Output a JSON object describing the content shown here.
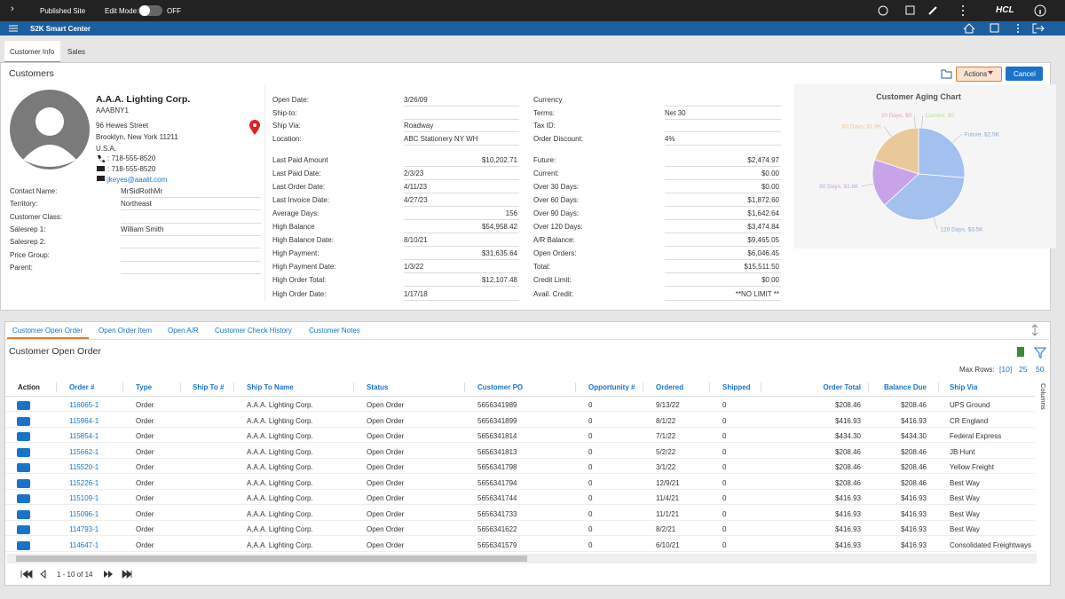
{
  "top_bar": {
    "site": "Published Site",
    "edit_mode": "Edit Mode:",
    "edit_state": "OFF",
    "brand": "HCL"
  },
  "app_bar": {
    "title": "S2K Smart Center"
  },
  "tabs": [
    "Customer Info",
    "Sales"
  ],
  "customers": {
    "title": "Customers",
    "actions": "Actions",
    "cancel": "Cancel"
  },
  "customer": {
    "name": "A.A.A. Lighting Corp.",
    "code": "AAABNY1",
    "address": [
      "96 Hewes Street",
      "Brooklyn, New York 11211",
      "U.S.A."
    ],
    "phone": ": 718-555-8520",
    "fax": ": 718-555-8520",
    "email": "jkeyes@aaalit.com"
  },
  "contact_fields": [
    {
      "label": "Contact Name:",
      "value": "MrSidRothMr"
    },
    {
      "label": "Territory:",
      "value": "Northeast"
    },
    {
      "label": "Customer Class:"
    },
    {
      "label": "Salesrep 1:",
      "value": "William Smith"
    },
    {
      "label": "Salesrep 2:"
    },
    {
      "label": "Price Group:"
    },
    {
      "label": "Parent:"
    }
  ],
  "details_col1": [
    {
      "label": "Open Date:",
      "value": "3/26/09"
    },
    {
      "label": "Ship-to:"
    },
    {
      "label": "Ship Via:",
      "value": "Roadway"
    },
    {
      "label": "Location:",
      "value": "ABC Stationery NY WH"
    },
    {
      "label": "Last Paid Amount",
      "value": "$10,202.71"
    },
    {
      "label": "Last Paid Date:",
      "value": "2/3/23"
    },
    {
      "label": "Last Order Date:",
      "value": "4/11/23"
    },
    {
      "label": "Last Invoice Date:",
      "value": "4/27/23"
    },
    {
      "label": "Average Days:",
      "value": "156"
    },
    {
      "label": "High Balance",
      "value": "$54,958.42"
    },
    {
      "label": "High Balance Date:",
      "value": "8/10/21"
    },
    {
      "label": "High Payment:",
      "value": "$31,635.64"
    },
    {
      "label": "High Payment Date:",
      "value": "1/3/22"
    },
    {
      "label": "High Order Total:",
      "value": "$12,107.48"
    },
    {
      "label": "High Order Date:",
      "value": "1/17/18"
    }
  ],
  "details_col2": [
    {
      "label": "Currency"
    },
    {
      "label": "Terms:",
      "value": "Net 30"
    },
    {
      "label": "Tax ID:"
    },
    {
      "label": "Order Discount:",
      "value": "4%"
    },
    {
      "label": "Future:",
      "value": "$2,474.97"
    },
    {
      "label": "Current:",
      "value": "$0.00"
    },
    {
      "label": "Over 30 Days:",
      "value": "$0.00"
    },
    {
      "label": "Over 60 Days:",
      "value": "$1,872.60"
    },
    {
      "label": "Over 90 Days:",
      "value": "$1,642.64"
    },
    {
      "label": "Over 120 Days:",
      "value": "$3,474.84"
    },
    {
      "label": "A/R Balance:",
      "value": "$9,465.05"
    },
    {
      "label": "Open Orders:",
      "value": "$6,046.45"
    },
    {
      "label": "Total:",
      "value": "$15,511.50"
    },
    {
      "label": "Credit Limit:",
      "value": "$0.00"
    },
    {
      "label": "Avail. Credit:",
      "value": "**NO LIMIT **"
    }
  ],
  "aging_chart": {
    "type": "pie",
    "title": "Customer Aging Chart",
    "values": [
      2500,
      0,
      0,
      1900,
      1600,
      3500
    ],
    "value_labels": [
      "Future, $2.5K",
      "Current, $0",
      "30 Days, $0",
      "60 Days, $1.9K",
      "90 Days, $1.6K",
      "120 Days, $3.5K"
    ],
    "colors": [
      "#a3c0ee",
      "#b9d98f",
      "#e9a3bc",
      "#e9c99c",
      "#c9a3e8",
      "#a3c0ee"
    ]
  },
  "bottom_tabs": [
    "Customer Open Order",
    "Open Order Item",
    "Open A/R",
    "Customer Check History",
    "Customer Notes"
  ],
  "section_title": "Customer Open Order",
  "max_rows": {
    "label": "Max Rows:",
    "options": [
      "[10]",
      "25",
      "50"
    ]
  },
  "table": {
    "columns": [
      "Action",
      "Order #",
      "Type",
      "Ship To #",
      "Ship To Name",
      "Status",
      "Customer PO",
      "Opportunity #",
      "Ordered",
      "Shipped",
      "Order Total",
      "Balance Due",
      "Ship Via"
    ],
    "rows": [
      [
        "116065-1",
        "Order",
        null,
        "A.A.A. Lighting Corp.",
        "Open Order",
        "5656341989",
        "0",
        "9/13/22",
        "0",
        "$208.46",
        "$208.46",
        "UPS Ground"
      ],
      [
        "115964-1",
        "Order",
        null,
        "A.A.A. Lighting Corp.",
        "Open Order",
        "5656341899",
        "0",
        "8/1/22",
        "0",
        "$416.93",
        "$416.93",
        "CR England"
      ],
      [
        "115854-1",
        "Order",
        null,
        "A.A.A. Lighting Corp.",
        "Open Order",
        "5656341814",
        "0",
        "7/1/22",
        "0",
        "$434.30",
        "$434.30",
        "Federal Express"
      ],
      [
        "115662-1",
        "Order",
        null,
        "A.A.A. Lighting Corp.",
        "Open Order",
        "5656341813",
        "0",
        "5/2/22",
        "0",
        "$208.46",
        "$208.46",
        "JB Hunt"
      ],
      [
        "115520-1",
        "Order",
        null,
        "A.A.A. Lighting Corp.",
        "Open Order",
        "5656341798",
        "0",
        "3/1/22",
        "0",
        "$208.46",
        "$208.46",
        "Yellow Freight"
      ],
      [
        "115226-1",
        "Order",
        null,
        "A.A.A. Lighting Corp.",
        "Open Order",
        "5656341794",
        "0",
        "12/9/21",
        "0",
        "$208.46",
        "$208.46",
        "Best Way"
      ],
      [
        "115109-1",
        "Order",
        null,
        "A.A.A. Lighting Corp.",
        "Open Order",
        "5656341744",
        "0",
        "11/4/21",
        "0",
        "$416.93",
        "$416.93",
        "Best Way"
      ],
      [
        "115096-1",
        "Order",
        null,
        "A.A.A. Lighting Corp.",
        "Open Order",
        "5656341733",
        "0",
        "11/1/21",
        "0",
        "$416.93",
        "$416.93",
        "Best Way"
      ],
      [
        "114793-1",
        "Order",
        null,
        "A.A.A. Lighting Corp.",
        "Open Order",
        "5656341622",
        "0",
        "8/2/21",
        "0",
        "$416.93",
        "$416.93",
        "Best Way"
      ],
      [
        "114647-1",
        "Order",
        null,
        "A.A.A. Lighting Corp.",
        "Open Order",
        "5656341579",
        "0",
        "6/10/21",
        "0",
        "$416.93",
        "$416.93",
        "Consolidated Freightways"
      ]
    ]
  },
  "columns_toggle": "Columns",
  "pagination": "1 - 10 of 14"
}
